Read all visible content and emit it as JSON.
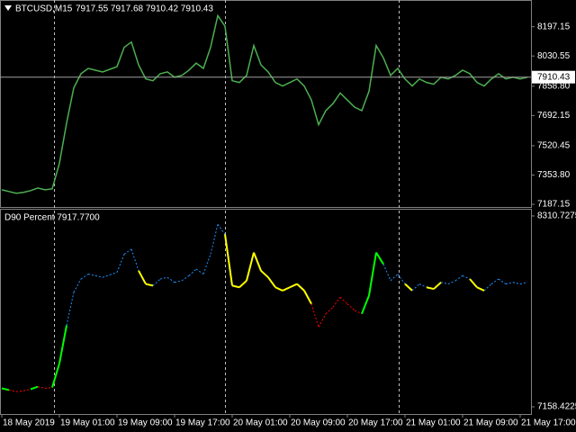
{
  "chart_data": [
    {
      "type": "line",
      "title": "BTCUSD,M15",
      "subtitle": "7917.55 7917.68 7910.42 7910.43",
      "color": "#4caf50",
      "x": [
        0,
        1,
        2,
        3,
        4,
        5,
        6,
        7,
        8,
        9,
        10,
        11,
        12,
        13,
        14,
        15,
        16,
        17,
        18,
        19,
        20,
        21,
        22,
        23,
        24,
        25,
        26,
        27,
        28,
        29,
        30,
        31,
        32,
        33,
        34,
        35,
        36,
        37,
        38,
        39,
        40,
        41,
        42,
        43,
        44,
        45,
        46,
        47,
        48,
        49,
        50,
        51,
        52,
        53,
        54,
        55,
        56,
        57,
        58,
        59,
        60,
        61,
        62,
        63,
        64,
        65,
        66,
        67,
        68,
        69,
        70,
        71,
        72,
        73
      ],
      "values": [
        7270,
        7260,
        7250,
        7255,
        7265,
        7280,
        7270,
        7275,
        7420,
        7650,
        7850,
        7930,
        7960,
        7950,
        7940,
        7955,
        7970,
        8080,
        8110,
        7980,
        7900,
        7890,
        7930,
        7940,
        7910,
        7920,
        7950,
        7990,
        7960,
        8080,
        8260,
        8200,
        7890,
        7880,
        7920,
        8090,
        7980,
        7940,
        7880,
        7860,
        7880,
        7900,
        7860,
        7780,
        7640,
        7720,
        7760,
        7820,
        7780,
        7740,
        7720,
        7830,
        8090,
        8020,
        7920,
        7960,
        7900,
        7860,
        7900,
        7880,
        7870,
        7910,
        7900,
        7920,
        7950,
        7930,
        7880,
        7860,
        7900,
        7930,
        7900,
        7910,
        7900,
        7910
      ],
      "xlim": [
        0,
        73
      ],
      "xticks": [
        {
          "value": 0,
          "label": "18 May 2019"
        },
        {
          "value": 8,
          "label": "19 May 01:00"
        },
        {
          "value": 16,
          "label": "19 May 09:00"
        },
        {
          "value": 24,
          "label": "19 May 17:00"
        },
        {
          "value": 32,
          "label": "20 May 01:00"
        },
        {
          "value": 40,
          "label": "20 May 09:00"
        },
        {
          "value": 48,
          "label": "20 May 17:00"
        },
        {
          "value": 56,
          "label": "21 May 01:00"
        },
        {
          "value": 64,
          "label": "21 May 09:00"
        },
        {
          "value": 72,
          "label": "21 May 17:00"
        }
      ],
      "ylim": [
        7172,
        8349
      ],
      "yticks": [
        8197.15,
        8030.55,
        {
          "value": 7858.8,
          "label": "7858.80"
        },
        7692.15,
        7520.45,
        {
          "value": 7353.8,
          "label": "7353.80"
        },
        7187.15
      ],
      "last_price": 7910.43
    },
    {
      "type": "line",
      "title": "D90 Percent 7917.7700",
      "values": [
        7270,
        7260,
        7250,
        7255,
        7265,
        7280,
        7270,
        7275,
        7420,
        7650,
        7850,
        7930,
        7960,
        7950,
        7940,
        7955,
        7970,
        8080,
        8110,
        7980,
        7900,
        7890,
        7930,
        7940,
        7910,
        7920,
        7950,
        7990,
        7960,
        8080,
        8260,
        8200,
        7890,
        7880,
        7920,
        8090,
        7980,
        7940,
        7880,
        7860,
        7880,
        7900,
        7860,
        7780,
        7640,
        7720,
        7760,
        7820,
        7780,
        7740,
        7720,
        7830,
        8090,
        8020,
        7920,
        7960,
        7900,
        7860,
        7900,
        7880,
        7870,
        7910,
        7900,
        7920,
        7950,
        7930,
        7880,
        7860,
        7900,
        7930,
        7900,
        7910,
        7900,
        7910
      ],
      "colors": [
        "#ff0000",
        "#00ff00",
        "#ff0000",
        "#ff0000",
        "#ff0000",
        "#00ff00",
        "#ff0000",
        "#ff0000",
        "#00ff00",
        "#00ff00",
        "#1e90ff",
        "#1e90ff",
        "#1e90ff",
        "#1e90ff",
        "#1e90ff",
        "#1e90ff",
        "#1e90ff",
        "#1e90ff",
        "#1e90ff",
        "#1e90ff",
        "#ffff00",
        "#ffff00",
        "#1e90ff",
        "#1e90ff",
        "#1e90ff",
        "#1e90ff",
        "#1e90ff",
        "#1e90ff",
        "#1e90ff",
        "#1e90ff",
        "#1e90ff",
        "#1e90ff",
        "#ffff00",
        "#ffff00",
        "#ffff00",
        "#ffff00",
        "#ffff00",
        "#ffff00",
        "#ffff00",
        "#ffff00",
        "#ffff00",
        "#ffff00",
        "#ffff00",
        "#ffff00",
        "#ff0000",
        "#ff0000",
        "#ff0000",
        "#ff0000",
        "#ff0000",
        "#ff0000",
        "#ff0000",
        "#00ff00",
        "#00ff00",
        "#00ff00",
        "#1e90ff",
        "#1e90ff",
        "#1e90ff",
        "#ffff00",
        "#1e90ff",
        "#1e90ff",
        "#ffff00",
        "#ffff00",
        "#1e90ff",
        "#1e90ff",
        "#1e90ff",
        "#1e90ff",
        "#ffff00",
        "#ffff00",
        "#1e90ff",
        "#1e90ff",
        "#1e90ff",
        "#1e90ff",
        "#1e90ff",
        "#1e90ff"
      ],
      "ylim": [
        7115,
        8354
      ],
      "yticks": [
        8310.7275,
        7158.4225
      ]
    }
  ]
}
